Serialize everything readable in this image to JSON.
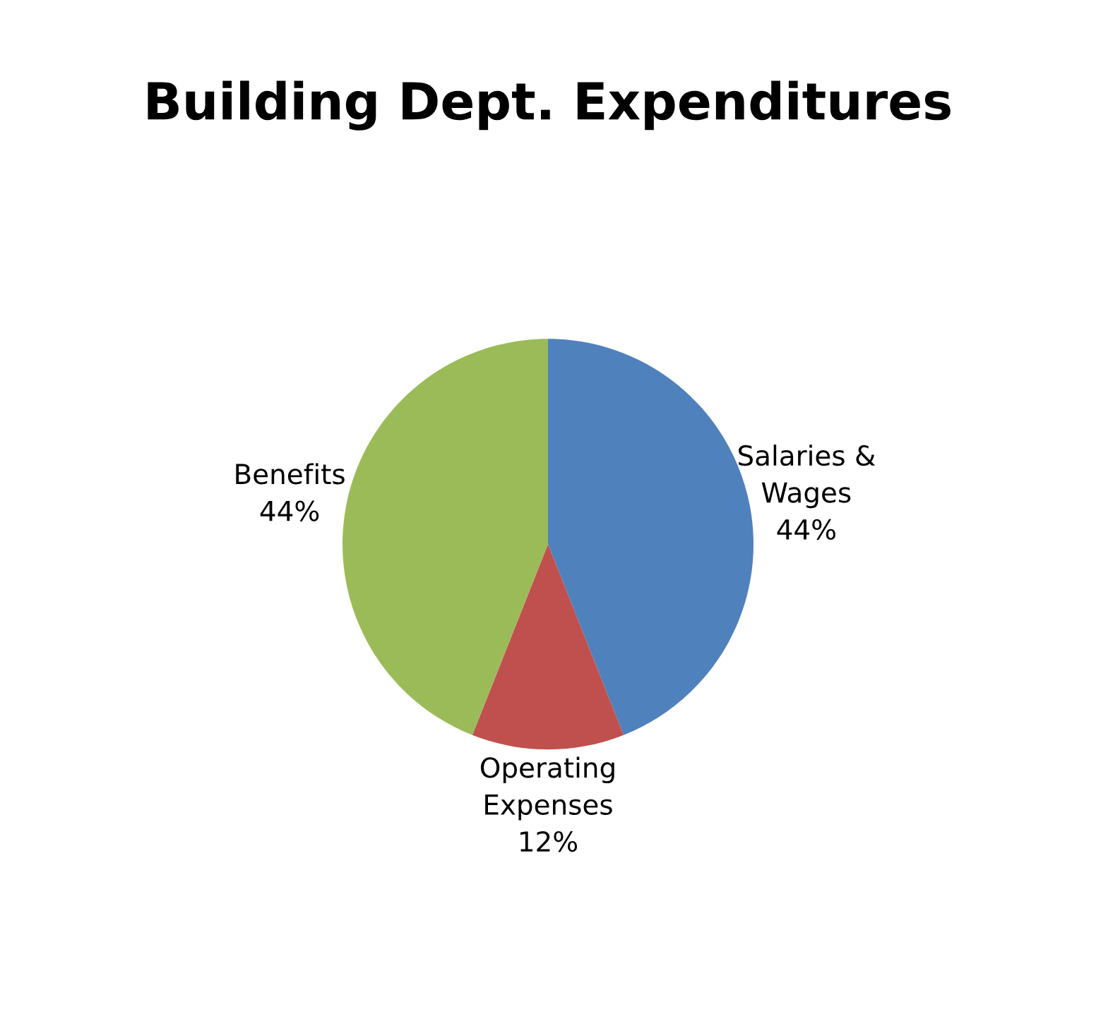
{
  "chart_data": {
    "type": "pie",
    "title": "Building Dept. Expenditures",
    "categories": [
      "Salaries &\nWages",
      "Operating\nExpenses",
      "Benefits"
    ],
    "values": [
      44,
      12,
      44
    ],
    "colors": [
      "#4f81bd",
      "#c0504d",
      "#9bbb59"
    ],
    "value_labels": [
      "44%",
      "12%",
      "44%"
    ],
    "legend": false
  }
}
